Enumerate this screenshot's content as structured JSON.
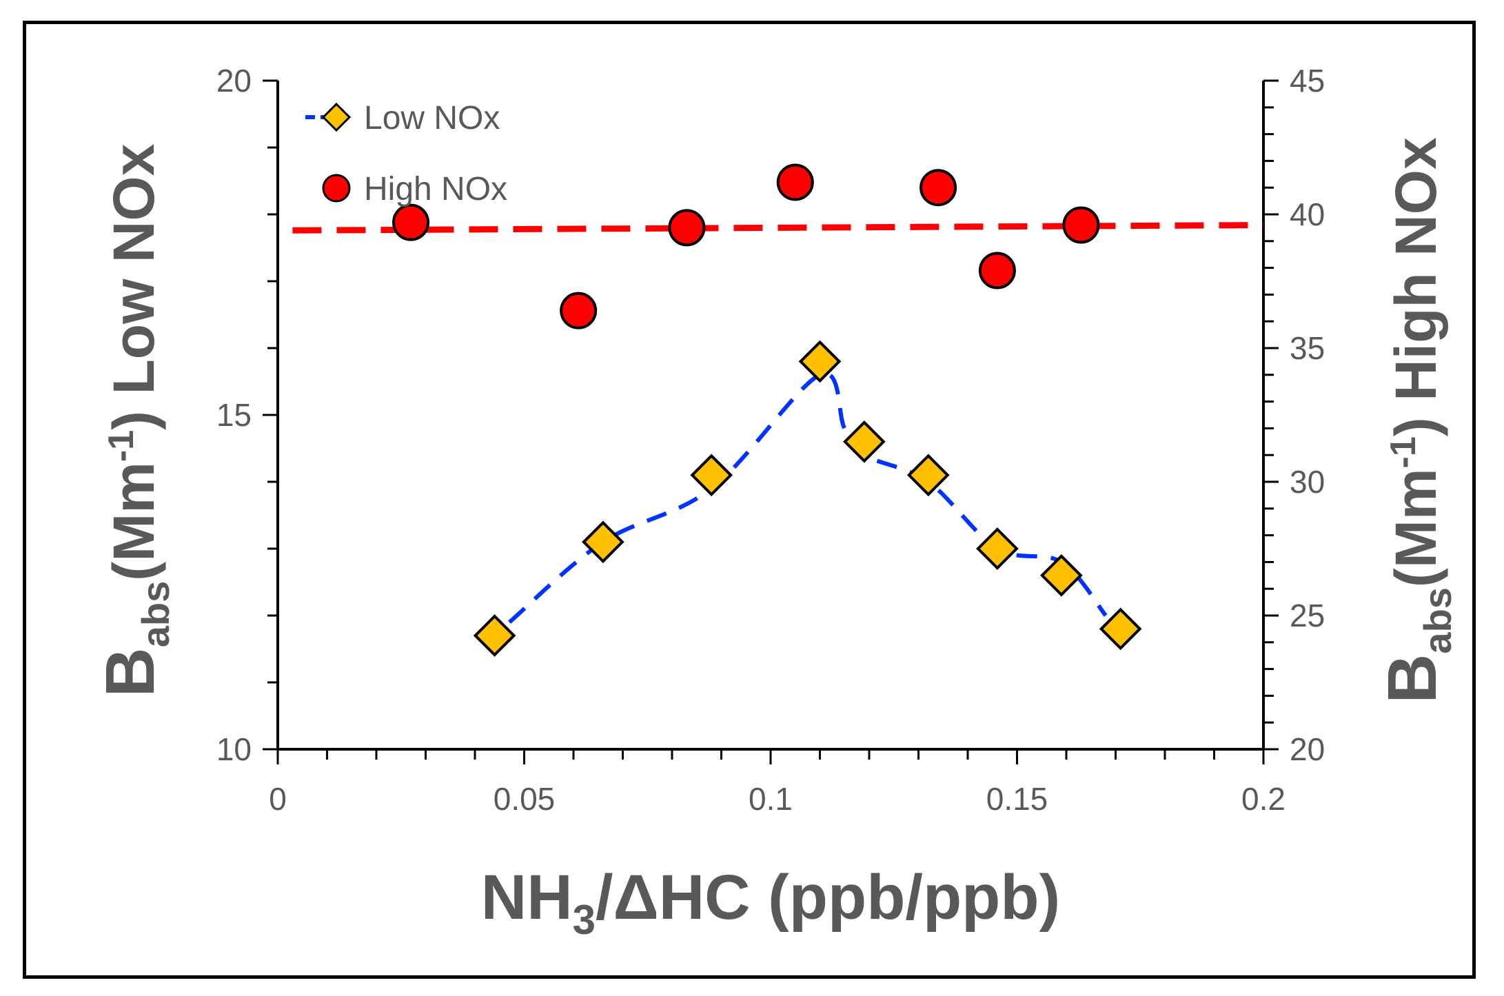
{
  "chart_data": {
    "type": "scatter",
    "x_axis": {
      "label_main": "NH",
      "label_sub": "3",
      "label_rest": "/ΔHC (ppb/ppb)",
      "min": 0,
      "max": 0.2,
      "ticks": [
        0,
        0.05,
        0.1,
        0.15,
        0.2
      ],
      "tick_labels": [
        "0",
        "0.05",
        "0.1",
        "0.15",
        "0.2"
      ]
    },
    "y_left": {
      "label_main": "B",
      "label_sub": "abs",
      "label_mid": "(Mm",
      "label_sup": "-1",
      "label_rest": ") Low NOx",
      "min": 10,
      "max": 20,
      "ticks": [
        10,
        15,
        20
      ],
      "tick_labels": [
        "10",
        "15",
        "20"
      ]
    },
    "y_right": {
      "label_main": "B",
      "label_sub": "abs",
      "label_mid": "(Mm",
      "label_sup": "-1",
      "label_rest": ") High NOx",
      "min": 20,
      "max": 45,
      "ticks": [
        20,
        25,
        30,
        35,
        40,
        45
      ],
      "tick_labels": [
        "20",
        "25",
        "30",
        "35",
        "40",
        "45"
      ]
    },
    "series": [
      {
        "name": "Low NOx",
        "axis": "left",
        "marker": "diamond",
        "color": "#FFC000",
        "line_color": "#0033FF",
        "line_style": "dashed",
        "x": [
          0.044,
          0.066,
          0.088,
          0.11,
          0.119,
          0.132,
          0.146,
          0.159,
          0.171
        ],
        "y": [
          11.7,
          13.1,
          14.1,
          15.8,
          14.6,
          14.1,
          13.0,
          12.6,
          11.8
        ]
      },
      {
        "name": "High NOx",
        "axis": "right",
        "marker": "circle",
        "color": "#FF0000",
        "x": [
          0.027,
          0.061,
          0.083,
          0.105,
          0.134,
          0.146,
          0.163
        ],
        "y": [
          39.7,
          36.4,
          39.5,
          41.2,
          41.0,
          37.9,
          39.6
        ]
      }
    ],
    "trendline": {
      "series": "High NOx",
      "axis": "right",
      "color": "#FF0000",
      "line_style": "dashed",
      "x": [
        0.003,
        0.2
      ],
      "y": [
        39.4,
        39.6
      ]
    },
    "low_nox_curve": {
      "x": [
        0.047,
        0.066,
        0.088,
        0.11,
        0.115,
        0.119,
        0.132,
        0.146,
        0.159,
        0.168
      ],
      "y": [
        11.9,
        13.1,
        13.9,
        15.6,
        14.8,
        14.4,
        14.0,
        13.0,
        12.8,
        12.0
      ]
    },
    "legend": {
      "position": "top-left",
      "entries": [
        "Low NOx",
        "High NOx"
      ]
    }
  }
}
